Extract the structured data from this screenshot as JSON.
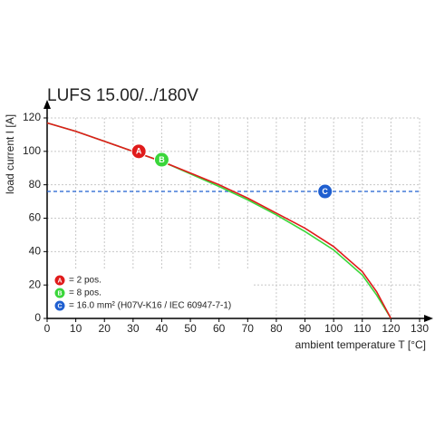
{
  "chart_data": {
    "type": "line",
    "title": "LUFS 15.00/../180V",
    "x_label": "ambient temperature T [°C]",
    "y_label": "load current I [A]",
    "x": [
      0,
      10,
      20,
      30,
      40,
      50,
      60,
      70,
      80,
      90,
      100,
      110,
      115,
      120
    ],
    "series": [
      {
        "name": "= 2 pos.",
        "marker": "A",
        "color": "#e01b1b",
        "values": [
          117,
          112,
          106,
          100,
          94,
          87,
          80,
          72,
          63,
          54,
          43,
          28,
          16,
          0
        ],
        "marker_x": 32,
        "marker_y": 100
      },
      {
        "name": "= 8 pos.",
        "marker": "B",
        "color": "#3ad63a",
        "values": [
          117,
          112,
          106,
          100,
          94,
          86.5,
          79,
          71,
          62,
          52,
          41,
          26,
          14,
          0
        ],
        "marker_x": 40,
        "marker_y": 95
      }
    ],
    "reference": {
      "name": "= 16.0 mm² (H07V-K16 / IEC 60947-7-1)",
      "marker": "C",
      "color": "#1f5fd0",
      "value": 76,
      "marker_x": 97
    },
    "xlim": [
      0,
      130
    ],
    "ylim": [
      0,
      120
    ],
    "xticks": [
      0,
      10,
      20,
      30,
      40,
      50,
      60,
      70,
      80,
      90,
      100,
      110,
      120,
      130
    ],
    "yticks": [
      0,
      20,
      40,
      60,
      80,
      100,
      120
    ],
    "grid": true
  }
}
